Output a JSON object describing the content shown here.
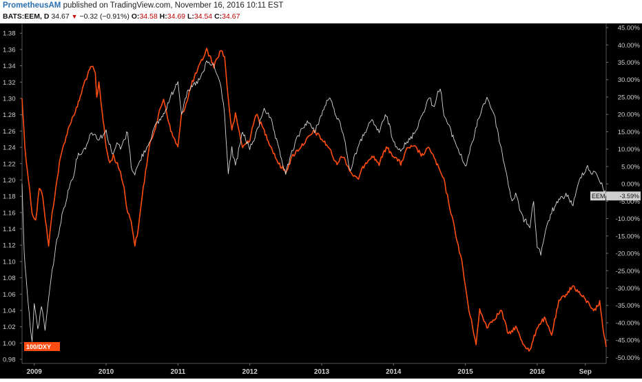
{
  "header": {
    "author": "PrometheusAM",
    "published_text": "published on TradingView.com, November 16, 2016 10:11 EST",
    "symbol": "BATS:EEM, D",
    "last": "34.67",
    "change": "−0.32 (−0.91%)",
    "o_label": "O:",
    "o_value": "34.58",
    "h_label": "H:",
    "h_value": "34.69",
    "l_label": "L:",
    "l_value": "34.54",
    "c_label": "C:",
    "c_value": "34.67"
  },
  "chart_data": {
    "type": "line",
    "grid": false,
    "background": "#000000",
    "x_ticks": [
      "2009",
      "2010",
      "2011",
      "2012",
      "2013",
      "2014",
      "2015",
      "2016",
      "Sep"
    ],
    "x_range": [
      2008.83,
      2016.96
    ],
    "left_axis": {
      "range": [
        0.975,
        1.392
      ],
      "ticks": [
        "1.38",
        "1.36",
        "1.34",
        "1.32",
        "1.30",
        "1.28",
        "1.26",
        "1.24",
        "1.22",
        "1.20",
        "1.18",
        "1.16",
        "1.14",
        "1.12",
        "1.10",
        "1.08",
        "1.06",
        "1.04",
        "1.02",
        "1.00",
        "0.98"
      ]
    },
    "right_axis": {
      "range": [
        -51.7,
        46.2
      ],
      "ticks": [
        "45.00%",
        "40.00%",
        "35.00%",
        "30.00%",
        "25.00%",
        "20.00%",
        "15.00%",
        "10.00%",
        "5.00%",
        "0.00%",
        "-5.00%",
        "-10.00%",
        "-15.00%",
        "-20.00%",
        "-25.00%",
        "-30.00%",
        "-35.00%",
        "-40.00%",
        "-45.00%",
        "-50.00%"
      ]
    },
    "series": [
      {
        "name": "100/DXY",
        "axis": "left",
        "color": "#ff4d12",
        "x": [
          2008.83,
          2008.87,
          2008.92,
          2008.97,
          2009.02,
          2009.07,
          2009.12,
          2009.17,
          2009.2,
          2009.25,
          2009.3,
          2009.35,
          2009.4,
          2009.5,
          2009.6,
          2009.7,
          2009.8,
          2009.85,
          2009.87,
          2009.9,
          2010.0,
          2010.05,
          2010.1,
          2010.2,
          2010.25,
          2010.3,
          2010.35,
          2010.4,
          2010.45,
          2010.5,
          2010.55,
          2010.6,
          2010.7,
          2010.8,
          2010.9,
          2011.0,
          2011.05,
          2011.1,
          2011.2,
          2011.3,
          2011.4,
          2011.5,
          2011.55,
          2011.6,
          2011.65,
          2011.7,
          2011.75,
          2011.8,
          2011.9,
          2012.0,
          2012.05,
          2012.1,
          2012.2,
          2012.3,
          2012.4,
          2012.5,
          2012.6,
          2012.7,
          2012.8,
          2012.9,
          2013.0,
          2013.1,
          2013.2,
          2013.3,
          2013.4,
          2013.5,
          2013.6,
          2013.7,
          2013.8,
          2013.9,
          2014.0,
          2014.1,
          2014.2,
          2014.3,
          2014.4,
          2014.5,
          2014.55,
          2014.6,
          2014.7,
          2014.75,
          2014.8,
          2014.85,
          2014.9,
          2014.95,
          2015.0,
          2015.05,
          2015.1,
          2015.15,
          2015.2,
          2015.3,
          2015.4,
          2015.5,
          2015.6,
          2015.7,
          2015.8,
          2015.9,
          2016.0,
          2016.1,
          2016.2,
          2016.3,
          2016.4,
          2016.5,
          2016.6,
          2016.7,
          2016.8,
          2016.87,
          2016.9,
          2016.93,
          2016.96
        ],
        "y": [
          1.3,
          1.24,
          1.2,
          1.16,
          1.15,
          1.19,
          1.18,
          1.14,
          1.12,
          1.16,
          1.19,
          1.22,
          1.24,
          1.27,
          1.29,
          1.32,
          1.34,
          1.33,
          1.3,
          1.32,
          1.24,
          1.22,
          1.23,
          1.21,
          1.19,
          1.16,
          1.15,
          1.12,
          1.14,
          1.18,
          1.21,
          1.24,
          1.27,
          1.3,
          1.26,
          1.24,
          1.28,
          1.29,
          1.32,
          1.34,
          1.36,
          1.34,
          1.35,
          1.36,
          1.35,
          1.3,
          1.26,
          1.28,
          1.24,
          1.25,
          1.27,
          1.28,
          1.26,
          1.24,
          1.22,
          1.21,
          1.23,
          1.24,
          1.25,
          1.26,
          1.25,
          1.24,
          1.22,
          1.23,
          1.21,
          1.2,
          1.22,
          1.23,
          1.22,
          1.24,
          1.23,
          1.22,
          1.24,
          1.24,
          1.23,
          1.24,
          1.23,
          1.22,
          1.2,
          1.18,
          1.16,
          1.14,
          1.12,
          1.1,
          1.07,
          1.04,
          1.02,
          1.0,
          1.04,
          1.02,
          1.03,
          1.04,
          1.01,
          1.02,
          1.0,
          0.99,
          1.02,
          1.03,
          1.01,
          1.05,
          1.06,
          1.07,
          1.06,
          1.05,
          1.04,
          1.05,
          1.03,
          1.01,
          0.995
        ]
      },
      {
        "name": "EEM",
        "axis": "right",
        "color": "#d8d8d8",
        "last_label": "-3.59%",
        "x": [
          2008.83,
          2008.86,
          2008.9,
          2008.93,
          2008.97,
          2009.0,
          2009.05,
          2009.1,
          2009.15,
          2009.2,
          2009.25,
          2009.3,
          2009.4,
          2009.5,
          2009.55,
          2009.6,
          2009.7,
          2009.8,
          2009.9,
          2010.0,
          2010.1,
          2010.15,
          2010.2,
          2010.3,
          2010.35,
          2010.4,
          2010.5,
          2010.6,
          2010.65,
          2010.7,
          2010.8,
          2010.9,
          2011.0,
          2011.05,
          2011.1,
          2011.2,
          2011.3,
          2011.35,
          2011.4,
          2011.5,
          2011.6,
          2011.65,
          2011.7,
          2011.75,
          2011.8,
          2011.9,
          2012.0,
          2012.1,
          2012.2,
          2012.3,
          2012.4,
          2012.5,
          2012.6,
          2012.7,
          2012.8,
          2012.9,
          2013.0,
          2013.1,
          2013.2,
          2013.3,
          2013.4,
          2013.45,
          2013.5,
          2013.6,
          2013.7,
          2013.8,
          2013.9,
          2014.0,
          2014.1,
          2014.2,
          2014.3,
          2014.4,
          2014.5,
          2014.55,
          2014.6,
          2014.65,
          2014.7,
          2014.8,
          2014.9,
          2015.0,
          2015.1,
          2015.2,
          2015.3,
          2015.4,
          2015.5,
          2015.6,
          2015.65,
          2015.7,
          2015.8,
          2015.9,
          2015.95,
          2016.0,
          2016.05,
          2016.1,
          2016.2,
          2016.3,
          2016.4,
          2016.5,
          2016.6,
          2016.7,
          2016.75,
          2016.8,
          2016.85,
          2016.9,
          2016.96
        ],
        "y": [
          0.0,
          -20.0,
          -30.0,
          -38.0,
          -45.0,
          -35.0,
          -42.0,
          -35.0,
          -42.0,
          -33.0,
          -25.0,
          -18.0,
          -8.0,
          0.0,
          3.0,
          8.0,
          10.0,
          15.0,
          13.0,
          15.0,
          8.0,
          12.0,
          10.0,
          15.0,
          5.0,
          3.0,
          8.0,
          12.0,
          15.0,
          17.0,
          20.0,
          25.0,
          30.0,
          20.0,
          25.0,
          28.0,
          30.0,
          32.0,
          35.0,
          34.0,
          28.0,
          20.0,
          3.0,
          10.0,
          5.0,
          15.0,
          10.0,
          15.0,
          22.0,
          18.0,
          10.0,
          3.0,
          10.0,
          15.0,
          18.0,
          15.0,
          20.0,
          25.0,
          20.0,
          15.0,
          3.0,
          8.0,
          10.0,
          15.0,
          18.0,
          15.0,
          20.0,
          12.0,
          10.0,
          12.0,
          15.0,
          20.0,
          25.0,
          22.0,
          25.0,
          28.0,
          20.0,
          15.0,
          10.0,
          5.0,
          12.0,
          20.0,
          25.0,
          20.0,
          10.0,
          0.0,
          -5.0,
          -3.0,
          -10.0,
          -12.0,
          -5.0,
          -18.0,
          -20.0,
          -15.0,
          -8.0,
          -5.0,
          -3.0,
          -6.0,
          2.0,
          5.0,
          3.0,
          4.0,
          1.0,
          0.0,
          -3.59
        ]
      }
    ]
  }
}
